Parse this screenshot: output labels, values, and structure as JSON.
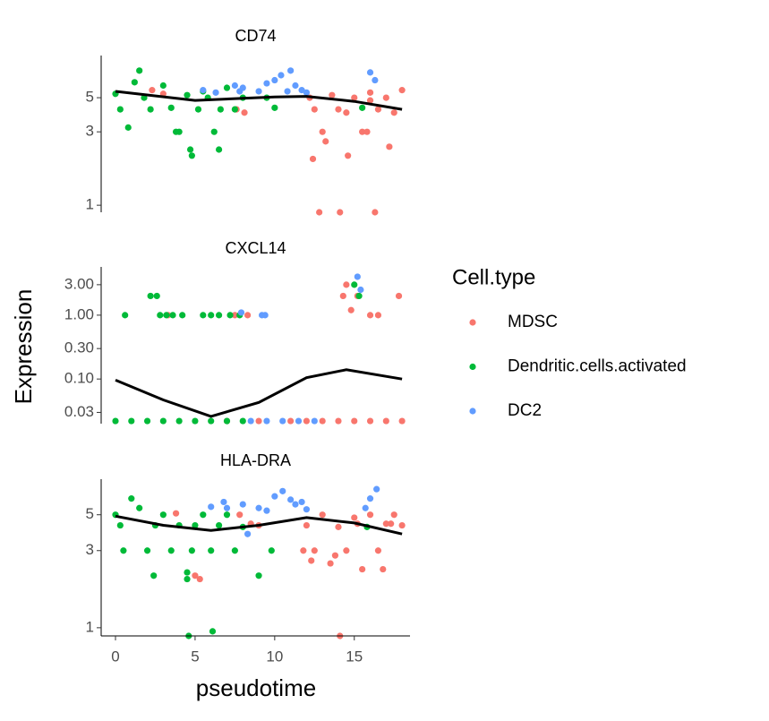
{
  "chart_data": {
    "type": "scatter",
    "x_label": "pseudotime",
    "y_label": "Expression",
    "legend_title": "Cell.type",
    "yscale": "log",
    "xlim": [
      -0.9,
      18.5
    ],
    "xticks": [
      0,
      5,
      10,
      15
    ],
    "series": [
      {
        "name": "MDSC",
        "color": "#f8766d"
      },
      {
        "name": "Dendritic.cells.activated",
        "color": "#00ba38"
      },
      {
        "name": "DC2",
        "color": "#619cff"
      }
    ],
    "facets": [
      {
        "title": "CD74",
        "ylim": [
          0.9,
          9.4
        ],
        "yticks": [
          1,
          3,
          5
        ],
        "series": [
          {
            "x": [
              2.3,
              3.0,
              7.6,
              8.1,
              12.2,
              12.5,
              13.0,
              13.6,
              14.0,
              14.5,
              15.0,
              15.5,
              16.0,
              16.5,
              17.0,
              17.5,
              18.0,
              12.4,
              14.1,
              16.3,
              13.2,
              15.8,
              17.2,
              12.8,
              14.6,
              16.0
            ],
            "values": [
              5.6,
              5.3,
              4.2,
              4.0,
              5.0,
              4.2,
              3.0,
              5.2,
              4.2,
              4.0,
              5.0,
              3.0,
              5.4,
              4.2,
              5.0,
              4.0,
              5.6,
              2.0,
              0.9,
              0.9,
              2.6,
              3.0,
              2.4,
              0.9,
              2.1,
              4.8
            ]
          },
          {
            "x": [
              0,
              0.3,
              0.8,
              1.5,
              1.8,
              2.2,
              3.0,
              3.5,
              4.0,
              4.5,
              4.8,
              5.2,
              5.8,
              6.2,
              6.5,
              7.0,
              7.5,
              8.0,
              9.5,
              10.0,
              4.7,
              6.6,
              1.2,
              3.8,
              5.5,
              15.5
            ],
            "values": [
              5.3,
              4.2,
              3.2,
              7.5,
              5.0,
              4.2,
              6.0,
              4.3,
              3.0,
              5.2,
              2.1,
              4.2,
              5.0,
              3.0,
              2.3,
              5.8,
              4.2,
              5.0,
              5.0,
              4.3,
              2.3,
              4.2,
              6.3,
              3.0,
              5.5,
              4.3
            ]
          },
          {
            "x": [
              5.5,
              6.3,
              7.5,
              8.0,
              9.0,
              9.5,
              10.0,
              10.4,
              10.8,
              11.0,
              11.3,
              11.7,
              12.0,
              16.0,
              16.3,
              7.8
            ],
            "values": [
              5.6,
              5.4,
              6.0,
              5.8,
              5.5,
              6.2,
              6.5,
              7.0,
              5.5,
              7.5,
              6.0,
              5.6,
              5.4,
              7.3,
              6.5,
              5.5
            ]
          }
        ],
        "trend": {
          "color": "#000000",
          "x": [
            0,
            5,
            10,
            12,
            15,
            18
          ],
          "values": [
            5.5,
            4.8,
            5.05,
            5.1,
            4.73,
            4.2
          ]
        }
      },
      {
        "title": "CXCL14",
        "ylim": [
          0.02,
          5.7
        ],
        "yticks": [
          {
            "value": 0.03,
            "label": "0.03"
          },
          {
            "value": 0.1,
            "label": "0.10"
          },
          {
            "value": 0.3,
            "label": "0.30"
          },
          {
            "value": 1,
            "label": "1.00"
          },
          {
            "value": 3,
            "label": "3.00"
          }
        ],
        "series": [
          {
            "x": [
              3.3,
              7.5,
              8.3,
              14.3,
              14.5,
              14.8,
              15.2,
              16.0,
              16.5,
              17.8,
              7.0,
              9.0,
              11.0,
              12.0,
              13.0,
              14.0,
              15.0,
              16.0,
              17.0,
              18.0
            ],
            "values": [
              1.0,
              1.0,
              1.0,
              2.0,
              3.0,
              1.2,
              2.0,
              1.0,
              1.0,
              2.0,
              0.022,
              0.022,
              0.022,
              0.022,
              0.022,
              0.022,
              0.022,
              0.022,
              0.022,
              0.022
            ]
          },
          {
            "x": [
              0.6,
              2.2,
              2.6,
              2.8,
              3.2,
              3.6,
              4.2,
              5.5,
              6.0,
              6.5,
              7.2,
              7.8,
              15.0,
              15.3,
              0,
              1,
              2,
              3,
              4,
              5,
              6,
              7,
              8
            ],
            "values": [
              1.0,
              2.0,
              2.0,
              1.0,
              1.0,
              1.0,
              1.0,
              1.0,
              1.0,
              1.0,
              1.0,
              1.0,
              3.0,
              2.0,
              0.022,
              0.022,
              0.022,
              0.022,
              0.022,
              0.022,
              0.022,
              0.022,
              0.022
            ]
          },
          {
            "x": [
              7.9,
              9.2,
              9.4,
              15.2,
              15.4,
              8.5,
              9.5,
              10.5,
              11.5,
              12.5
            ],
            "values": [
              1.1,
              1.0,
              1.0,
              4.0,
              2.5,
              0.022,
              0.022,
              0.022,
              0.022,
              0.022
            ]
          }
        ],
        "trend": {
          "color": "#000000",
          "x": [
            0,
            3,
            6,
            9,
            12,
            14.5,
            18
          ],
          "values": [
            0.096,
            0.047,
            0.026,
            0.043,
            0.105,
            0.14,
            0.1
          ]
        }
      },
      {
        "title": "HLA-DRA",
        "ylim": [
          0.89,
          8.3
        ],
        "yticks": [
          1,
          3,
          5
        ],
        "series": [
          {
            "x": [
              3.8,
              5.0,
              5.3,
              7.8,
              8.5,
              12.0,
              12.5,
              13.0,
              13.5,
              14.0,
              14.5,
              15.0,
              15.5,
              16.0,
              16.5,
              17.0,
              17.5,
              18.0,
              12.3,
              13.8,
              15.2,
              16.8,
              9.0,
              14.1,
              11.8,
              17.3
            ],
            "values": [
              5.1,
              2.1,
              2.0,
              5.0,
              4.4,
              4.3,
              3.0,
              5.0,
              2.5,
              4.2,
              3.0,
              4.8,
              2.3,
              5.0,
              3.0,
              4.4,
              5.0,
              4.3,
              2.6,
              2.8,
              4.4,
              2.3,
              4.3,
              0.89,
              3.0,
              4.4
            ]
          },
          {
            "x": [
              0,
              0.3,
              0.5,
              1.0,
              1.5,
              2.0,
              2.5,
              3.0,
              3.5,
              4.0,
              4.5,
              4.8,
              5.5,
              6.0,
              6.5,
              7.0,
              7.5,
              8.0,
              9.0,
              9.8,
              2.4,
              4.6,
              6.1,
              4.5,
              5.0,
              15.8
            ],
            "values": [
              5.0,
              4.3,
              3.0,
              6.3,
              5.5,
              3.0,
              4.3,
              5.0,
              3.0,
              4.3,
              2.2,
              3.0,
              5.0,
              3.0,
              4.3,
              5.0,
              3.0,
              4.2,
              2.1,
              3.0,
              2.1,
              0.89,
              0.95,
              2.0,
              4.3,
              4.2
            ]
          },
          {
            "x": [
              6.0,
              6.8,
              7.0,
              8.0,
              9.0,
              9.5,
              10.0,
              10.5,
              11.0,
              11.3,
              11.7,
              12.0,
              15.7,
              16.0,
              16.4,
              8.3
            ],
            "values": [
              5.6,
              6.0,
              5.5,
              5.8,
              5.5,
              5.3,
              6.5,
              7.0,
              6.2,
              5.8,
              6.0,
              5.4,
              5.5,
              6.3,
              7.2,
              3.8
            ]
          }
        ],
        "trend": {
          "color": "#000000",
          "x": [
            0,
            3,
            6,
            9,
            12,
            15,
            18
          ],
          "values": [
            4.9,
            4.3,
            4.0,
            4.3,
            4.8,
            4.45,
            3.8
          ]
        }
      }
    ]
  }
}
